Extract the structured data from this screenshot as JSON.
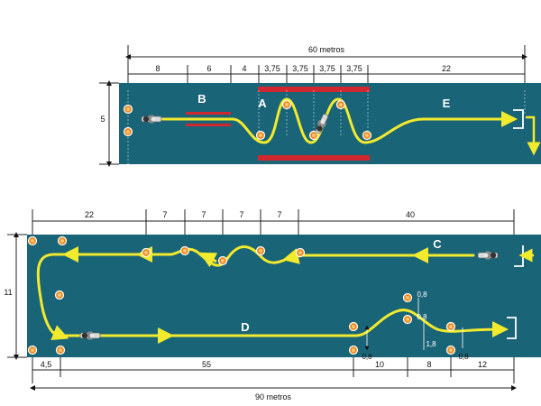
{
  "top_course": {
    "total_label": "60 metros",
    "segments": [
      "8",
      "6",
      "4",
      "3,75",
      "3,75",
      "3,75",
      "3,75",
      "22"
    ],
    "height_label": "5",
    "zones": {
      "b": "B",
      "a": "A",
      "e": "E"
    }
  },
  "bottom_course": {
    "top_segments": [
      "22",
      "7",
      "7",
      "7",
      "7",
      "40"
    ],
    "bottom_segments": [
      "4,5",
      "55",
      "10",
      "8",
      "12"
    ],
    "total_label": "90 metros",
    "height_label": "11",
    "zones": {
      "c": "C",
      "d": "D"
    },
    "measures": {
      "m1": "0,8",
      "m2": "0,8",
      "m3": "1,8",
      "m4": "0,8",
      "m5": "0,8"
    }
  },
  "colors": {
    "track": "#1a6478",
    "cone": "#f08a1c",
    "line": "#f2ea2c",
    "barrier": "#d0282e"
  }
}
